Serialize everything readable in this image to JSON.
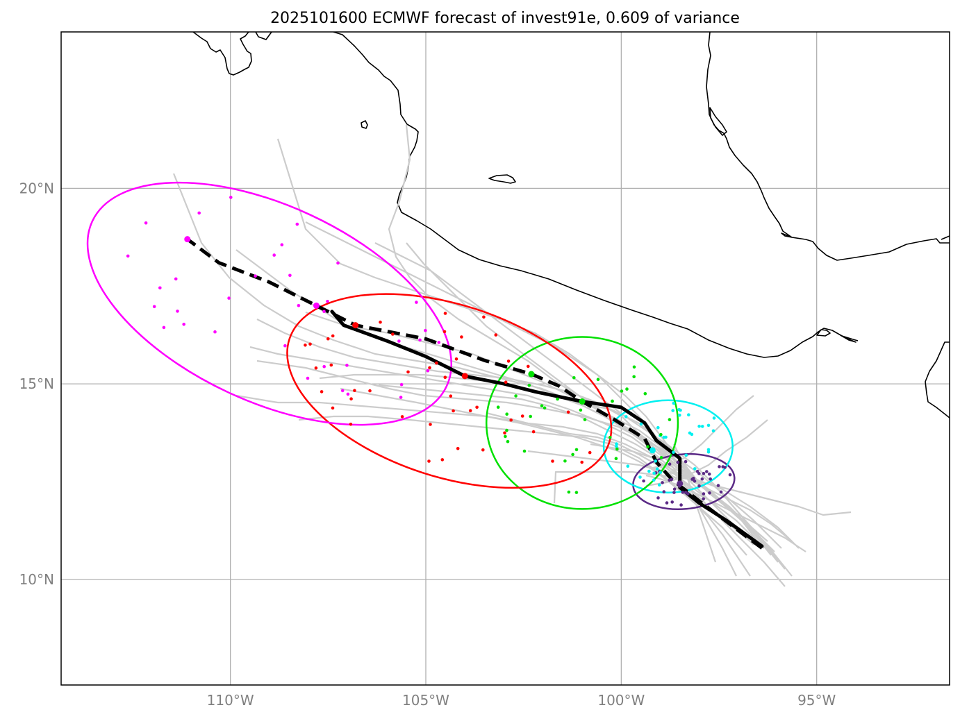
{
  "title": "2025101600 ECMWF forecast of invest91e, 0.609 of variance",
  "chart_data": {
    "type": "map",
    "title": "2025101600 ECMWF forecast of invest91e, 0.609 of variance",
    "lon_range": [
      -114.33,
      -91.6
    ],
    "lat_range": [
      7.3,
      24.0
    ],
    "lat_ticks": [
      {
        "value": 20,
        "label": "20°N"
      },
      {
        "value": 15,
        "label": "15°N"
      },
      {
        "value": 10,
        "label": "10°N"
      }
    ],
    "lon_ticks": [
      {
        "value": -110,
        "label": "110°W"
      },
      {
        "value": -105,
        "label": "105°W"
      },
      {
        "value": -100,
        "label": "100°W"
      },
      {
        "value": -95,
        "label": "95°W"
      }
    ],
    "colors": {
      "ensemble": "#cccccc",
      "mean_track": "#000000",
      "grid": "#b0b0b0",
      "coast": "#000000",
      "ellipse_purple": "#5b2a86",
      "ellipse_cyan": "#00f0f0",
      "ellipse_green": "#00e000",
      "ellipse_red": "#ff0000",
      "ellipse_magenta": "#ff00ff"
    },
    "solid_mean_track": [
      [
        -96.4,
        10.85
      ],
      [
        -97.3,
        11.5
      ],
      [
        -98.0,
        11.95
      ],
      [
        -98.5,
        12.35
      ],
      [
        -98.5,
        13.1
      ],
      [
        -99.1,
        13.55
      ],
      [
        -99.4,
        14.0
      ],
      [
        -100.0,
        14.4
      ],
      [
        -101.0,
        14.55
      ],
      [
        -102.2,
        14.8
      ],
      [
        -103.0,
        15.0
      ],
      [
        -104.0,
        15.2
      ],
      [
        -105.0,
        15.7
      ],
      [
        -106.0,
        16.1
      ],
      [
        -107.1,
        16.5
      ],
      [
        -107.4,
        16.85
      ]
    ],
    "dashed_mean_track": [
      [
        -96.4,
        10.8
      ],
      [
        -97.2,
        11.4
      ],
      [
        -98.0,
        12.0
      ],
      [
        -98.7,
        12.55
      ],
      [
        -99.1,
        13.0
      ],
      [
        -99.4,
        13.6
      ],
      [
        -100.2,
        14.1
      ],
      [
        -101.0,
        14.55
      ],
      [
        -101.6,
        14.95
      ],
      [
        -102.3,
        15.25
      ],
      [
        -103.5,
        15.6
      ],
      [
        -105.0,
        16.15
      ],
      [
        -106.8,
        16.5
      ],
      [
        -107.8,
        17.0
      ],
      [
        -109.0,
        17.6
      ],
      [
        -110.3,
        18.1
      ],
      [
        -111.1,
        18.7
      ]
    ],
    "mean_points": [
      {
        "lon": -98.5,
        "lat": 12.45,
        "color": "#5b2a86"
      },
      {
        "lon": -99.2,
        "lat": 13.3,
        "color": "#00f0f0"
      },
      {
        "lon": -101.0,
        "lat": 14.55,
        "color": "#00e000"
      },
      {
        "lon": -104.0,
        "lat": 15.2,
        "color": "#ff0000"
      },
      {
        "lon": -106.8,
        "lat": 16.5,
        "color": "#ff0000"
      },
      {
        "lon": -102.3,
        "lat": 15.25,
        "color": "#00e000"
      },
      {
        "lon": -107.8,
        "lat": 17.0,
        "color": "#ff00ff"
      },
      {
        "lon": -111.1,
        "lat": 18.7,
        "color": "#ff00ff"
      }
    ],
    "ellipses": [
      {
        "name": "purple",
        "color": "#5b2a86",
        "center": [
          -98.4,
          12.5
        ],
        "rx_deg": 1.3,
        "ry_deg": 0.7,
        "rotation": -5
      },
      {
        "name": "cyan",
        "color": "#00f0f0",
        "center": [
          -98.8,
          13.4
        ],
        "rx_deg": 1.65,
        "ry_deg": 1.18,
        "rotation": 0
      },
      {
        "name": "green",
        "color": "#00e000",
        "center": [
          -101.0,
          14.0
        ],
        "rx_deg": 2.45,
        "ry_deg": 2.2,
        "rotation": 0
      },
      {
        "name": "red",
        "color": "#ff0000",
        "center": [
          -104.4,
          14.82
        ],
        "rx_deg": 4.3,
        "ry_deg": 2.2,
        "rotation": 18
      },
      {
        "name": "magenta",
        "color": "#ff00ff",
        "center": [
          -109.0,
          17.05
        ],
        "rx_deg": 5.0,
        "ry_deg": 2.5,
        "rotation": 25
      }
    ]
  }
}
